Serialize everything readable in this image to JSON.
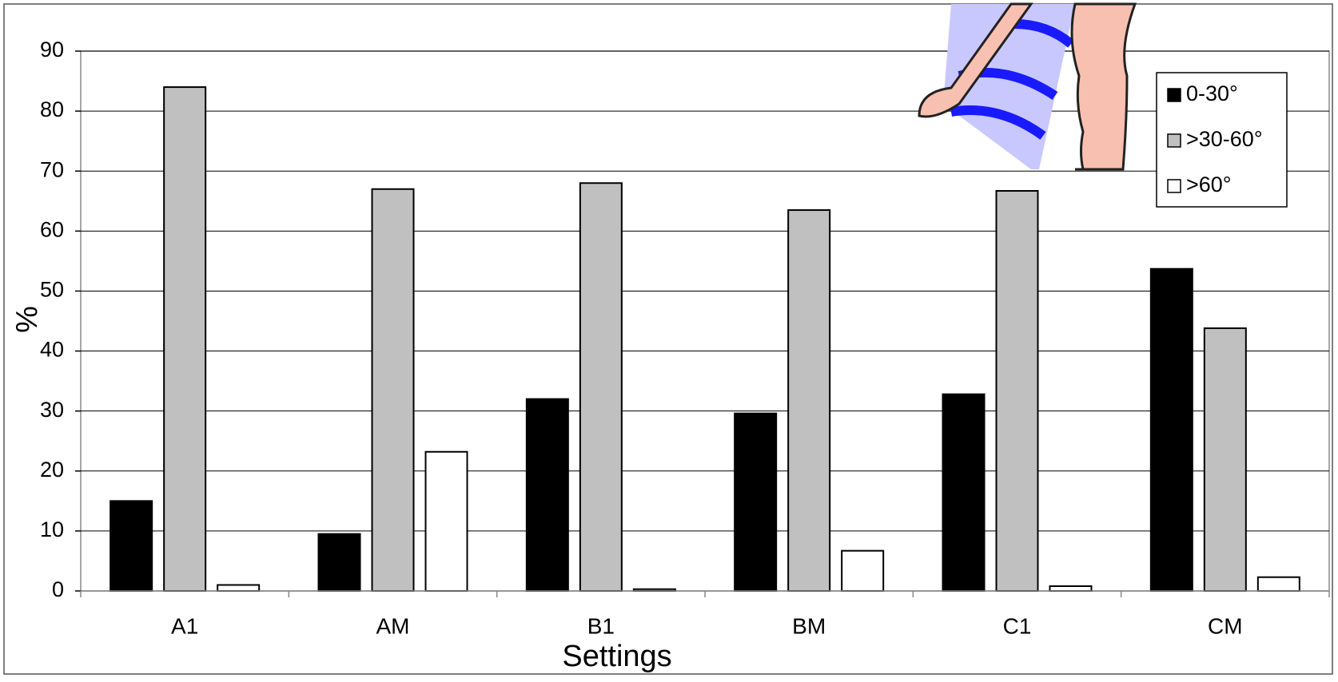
{
  "chart_data": {
    "type": "bar",
    "x_label": "Settings",
    "y_label": "%",
    "categories": [
      "A1",
      "AM",
      "B1",
      "BM",
      "C1",
      "CM"
    ],
    "series": [
      {
        "name": "0-30°",
        "color": "#000000",
        "values": [
          15,
          9.5,
          32,
          29.6,
          32.8,
          53.7
        ]
      },
      {
        "name": ">30-60°",
        "color": "#c0c0c0",
        "values": [
          84,
          67,
          68,
          63.5,
          66.7,
          43.8
        ]
      },
      {
        "name": ">60°",
        "color": "#ffffff",
        "values": [
          1,
          23.2,
          0.3,
          6.7,
          0.8,
          2.3
        ]
      }
    ],
    "ylim": [
      0,
      90
    ],
    "yticks": [
      0,
      10,
      20,
      30,
      40,
      50,
      60,
      70,
      80,
      90
    ],
    "grid": true,
    "legend_position": "upper right"
  }
}
